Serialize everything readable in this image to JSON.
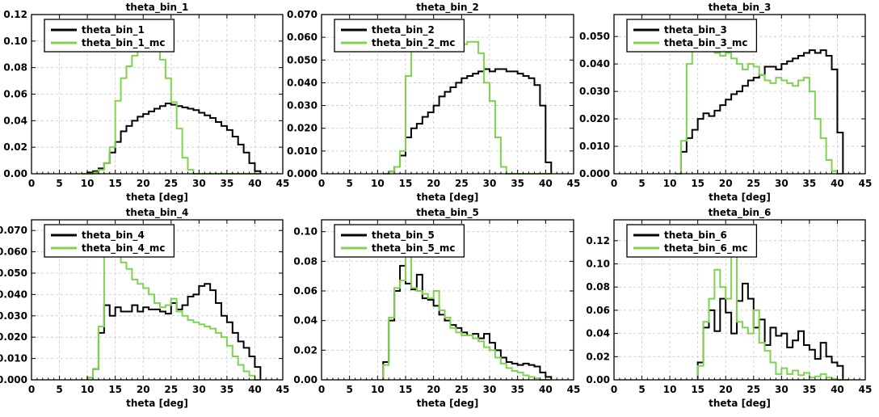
{
  "chart_data": [
    {
      "type": "line",
      "title": "theta_bin_1",
      "xlabel": "theta [deg]",
      "ylabel": "",
      "xlim": [
        0,
        45
      ],
      "ylim": [
        0,
        0.12
      ],
      "xticks": [
        0,
        5,
        10,
        15,
        20,
        25,
        30,
        35,
        40,
        45
      ],
      "yticks": [
        "0.00",
        "0.02",
        "0.04",
        "0.06",
        "0.08",
        "0.10",
        "0.12"
      ],
      "grid": true,
      "legend_position": "top-left",
      "x": [
        9,
        10,
        11,
        12,
        13,
        14,
        15,
        16,
        17,
        18,
        19,
        20,
        21,
        22,
        23,
        24,
        25,
        26,
        27,
        28,
        29,
        30,
        31,
        32,
        33,
        34,
        35,
        36,
        37,
        38,
        39,
        40
      ],
      "series": [
        {
          "name": "theta_bin_1",
          "color": "#000000",
          "values": [
            0.0,
            0.001,
            0.002,
            0.004,
            0.008,
            0.016,
            0.024,
            0.032,
            0.036,
            0.04,
            0.043,
            0.045,
            0.047,
            0.049,
            0.051,
            0.053,
            0.052,
            0.051,
            0.05,
            0.049,
            0.048,
            0.046,
            0.044,
            0.042,
            0.039,
            0.036,
            0.033,
            0.028,
            0.022,
            0.016,
            0.008,
            0.002
          ]
        },
        {
          "name": "theta_bin_1_mc",
          "color": "#7ed34f",
          "values": [
            0.0,
            0.0,
            0.001,
            0.003,
            0.008,
            0.02,
            0.055,
            0.072,
            0.081,
            0.089,
            0.093,
            0.096,
            0.099,
            0.098,
            0.086,
            0.072,
            0.054,
            0.034,
            0.012,
            0.003,
            0.0,
            0.0,
            0.0,
            0.0,
            0.0,
            0.0,
            0.0,
            0.0,
            0.0,
            0.0,
            0.0,
            0.0
          ]
        }
      ]
    },
    {
      "type": "line",
      "title": "theta_bin_2",
      "xlabel": "theta [deg]",
      "ylabel": "",
      "xlim": [
        0,
        45
      ],
      "ylim": [
        0,
        0.07
      ],
      "xticks": [
        0,
        5,
        10,
        15,
        20,
        25,
        30,
        35,
        40,
        45
      ],
      "yticks": [
        "0.000",
        "0.010",
        "0.020",
        "0.030",
        "0.040",
        "0.050",
        "0.060",
        "0.070"
      ],
      "grid": true,
      "legend_position": "top-left",
      "x": [
        11,
        12,
        13,
        14,
        15,
        16,
        17,
        18,
        19,
        20,
        21,
        22,
        23,
        24,
        25,
        26,
        27,
        28,
        29,
        30,
        31,
        32,
        33,
        34,
        35,
        36,
        37,
        38,
        39,
        40
      ],
      "series": [
        {
          "name": "theta_bin_2",
          "color": "#000000",
          "values": [
            0.0,
            0.001,
            0.003,
            0.008,
            0.016,
            0.02,
            0.022,
            0.025,
            0.027,
            0.03,
            0.034,
            0.036,
            0.038,
            0.04,
            0.042,
            0.043,
            0.044,
            0.045,
            0.046,
            0.045,
            0.046,
            0.046,
            0.045,
            0.045,
            0.044,
            0.043,
            0.042,
            0.039,
            0.03,
            0.005
          ]
        },
        {
          "name": "theta_bin_2_mc",
          "color": "#7ed34f",
          "values": [
            0.0,
            0.001,
            0.003,
            0.01,
            0.043,
            0.054,
            0.055,
            0.056,
            0.056,
            0.055,
            0.057,
            0.056,
            0.057,
            0.056,
            0.057,
            0.058,
            0.058,
            0.053,
            0.04,
            0.032,
            0.016,
            0.003,
            0.0,
            0.0,
            0.0,
            0.0,
            0.0,
            0.0,
            0.0,
            0.0
          ]
        }
      ]
    },
    {
      "type": "line",
      "title": "theta_bin_3",
      "xlabel": "theta [deg]",
      "ylabel": "",
      "xlim": [
        0,
        45
      ],
      "ylim": [
        0,
        0.058
      ],
      "xticks": [
        0,
        5,
        10,
        15,
        20,
        25,
        30,
        35,
        40,
        45
      ],
      "yticks": [
        "0.000",
        "0.010",
        "0.020",
        "0.030",
        "0.040",
        "0.050"
      ],
      "grid": true,
      "legend_position": "top-left",
      "x": [
        11,
        12,
        13,
        14,
        15,
        16,
        17,
        18,
        19,
        20,
        21,
        22,
        23,
        24,
        25,
        26,
        27,
        28,
        29,
        30,
        31,
        32,
        33,
        34,
        35,
        36,
        37,
        38,
        39,
        40
      ],
      "series": [
        {
          "name": "theta_bin_3",
          "color": "#000000",
          "values": [
            0.0,
            0.008,
            0.013,
            0.016,
            0.02,
            0.022,
            0.021,
            0.023,
            0.025,
            0.027,
            0.029,
            0.03,
            0.032,
            0.034,
            0.035,
            0.036,
            0.039,
            0.039,
            0.038,
            0.04,
            0.041,
            0.042,
            0.043,
            0.044,
            0.045,
            0.044,
            0.045,
            0.043,
            0.038,
            0.015
          ]
        },
        {
          "name": "theta_bin_3_mc",
          "color": "#7ed34f",
          "values": [
            0.0,
            0.012,
            0.04,
            0.045,
            0.046,
            0.047,
            0.045,
            0.044,
            0.043,
            0.044,
            0.042,
            0.04,
            0.038,
            0.04,
            0.039,
            0.036,
            0.034,
            0.033,
            0.035,
            0.034,
            0.033,
            0.032,
            0.034,
            0.035,
            0.03,
            0.02,
            0.013,
            0.005,
            0.001,
            0.0
          ]
        }
      ]
    },
    {
      "type": "line",
      "title": "theta_bin_4",
      "xlabel": "theta [deg]",
      "ylabel": "",
      "xlim": [
        0,
        45
      ],
      "ylim": [
        0,
        0.075
      ],
      "xticks": [
        0,
        5,
        10,
        15,
        20,
        25,
        30,
        35,
        40,
        45
      ],
      "yticks": [
        "0.000",
        "0.010",
        "0.020",
        "0.030",
        "0.040",
        "0.050",
        "0.060",
        "0.070"
      ],
      "grid": true,
      "legend_position": "top-left",
      "x": [
        10,
        11,
        12,
        13,
        14,
        15,
        16,
        17,
        18,
        19,
        20,
        21,
        22,
        23,
        24,
        25,
        26,
        27,
        28,
        29,
        30,
        31,
        32,
        33,
        34,
        35,
        36,
        37,
        38,
        39,
        40
      ],
      "series": [
        {
          "name": "theta_bin_4",
          "color": "#000000",
          "values": [
            0.001,
            0.005,
            0.022,
            0.035,
            0.03,
            0.034,
            0.032,
            0.032,
            0.035,
            0.032,
            0.034,
            0.033,
            0.033,
            0.032,
            0.031,
            0.036,
            0.033,
            0.035,
            0.039,
            0.04,
            0.044,
            0.045,
            0.042,
            0.036,
            0.03,
            0.027,
            0.022,
            0.018,
            0.015,
            0.011,
            0.006
          ]
        },
        {
          "name": "theta_bin_4_mc",
          "color": "#7ed34f",
          "values": [
            0.001,
            0.005,
            0.025,
            0.062,
            0.058,
            0.063,
            0.055,
            0.052,
            0.047,
            0.045,
            0.043,
            0.04,
            0.036,
            0.034,
            0.035,
            0.038,
            0.032,
            0.03,
            0.028,
            0.027,
            0.026,
            0.025,
            0.024,
            0.022,
            0.02,
            0.016,
            0.011,
            0.007,
            0.004,
            0.002,
            0.0
          ]
        }
      ]
    },
    {
      "type": "line",
      "title": "theta_bin_5",
      "xlabel": "theta [deg]",
      "ylabel": "",
      "xlim": [
        0,
        45
      ],
      "ylim": [
        0,
        0.108
      ],
      "xticks": [
        0,
        5,
        10,
        15,
        20,
        25,
        30,
        35,
        40,
        45
      ],
      "yticks": [
        "0.00",
        "0.02",
        "0.04",
        "0.06",
        "0.08",
        "0.10"
      ],
      "grid": true,
      "legend_position": "top-left",
      "x": [
        11,
        12,
        13,
        14,
        15,
        16,
        17,
        18,
        19,
        20,
        21,
        22,
        23,
        24,
        25,
        26,
        27,
        28,
        29,
        30,
        31,
        32,
        33,
        34,
        35,
        36,
        37,
        38,
        39,
        40
      ],
      "series": [
        {
          "name": "theta_bin_5",
          "color": "#000000",
          "values": [
            0.012,
            0.04,
            0.06,
            0.077,
            0.065,
            0.061,
            0.071,
            0.055,
            0.054,
            0.05,
            0.044,
            0.04,
            0.037,
            0.035,
            0.032,
            0.03,
            0.031,
            0.028,
            0.031,
            0.025,
            0.02,
            0.015,
            0.012,
            0.011,
            0.01,
            0.011,
            0.01,
            0.009,
            0.005,
            0.002
          ]
        },
        {
          "name": "theta_bin_5_mc",
          "color": "#7ed34f",
          "values": [
            0.01,
            0.042,
            0.062,
            0.067,
            0.085,
            0.062,
            0.06,
            0.058,
            0.055,
            0.06,
            0.047,
            0.042,
            0.035,
            0.032,
            0.03,
            0.03,
            0.028,
            0.026,
            0.022,
            0.02,
            0.015,
            0.011,
            0.008,
            0.006,
            0.005,
            0.003,
            0.002,
            0.001,
            0.0,
            0.0
          ]
        }
      ]
    },
    {
      "type": "line",
      "title": "theta_bin_6",
      "xlabel": "theta [deg]",
      "ylabel": "",
      "xlim": [
        0,
        45
      ],
      "ylim": [
        0,
        0.138
      ],
      "xticks": [
        0,
        5,
        10,
        15,
        20,
        25,
        30,
        35,
        40,
        45
      ],
      "yticks": [
        "0.00",
        "0.02",
        "0.04",
        "0.06",
        "0.08",
        "0.10",
        "0.12"
      ],
      "grid": true,
      "legend_position": "top-left",
      "x": [
        15,
        16,
        17,
        18,
        19,
        20,
        21,
        22,
        23,
        24,
        25,
        26,
        27,
        28,
        29,
        30,
        31,
        32,
        33,
        34,
        35,
        36,
        37,
        38,
        39,
        40,
        41
      ],
      "series": [
        {
          "name": "theta_bin_6",
          "color": "#000000",
          "values": [
            0.015,
            0.045,
            0.06,
            0.042,
            0.07,
            0.058,
            0.04,
            0.068,
            0.083,
            0.07,
            0.045,
            0.052,
            0.03,
            0.045,
            0.038,
            0.04,
            0.028,
            0.034,
            0.042,
            0.03,
            0.026,
            0.018,
            0.032,
            0.02,
            0.015,
            0.012,
            0.0
          ]
        },
        {
          "name": "theta_bin_6_mc",
          "color": "#7ed34f",
          "values": [
            0.012,
            0.05,
            0.07,
            0.095,
            0.08,
            0.07,
            0.11,
            0.05,
            0.045,
            0.04,
            0.06,
            0.032,
            0.025,
            0.015,
            0.005,
            0.01,
            0.005,
            0.008,
            0.004,
            0.006,
            0.002,
            0.003,
            0.005,
            0.002,
            0.001,
            0.0,
            0.0
          ]
        }
      ]
    }
  ]
}
